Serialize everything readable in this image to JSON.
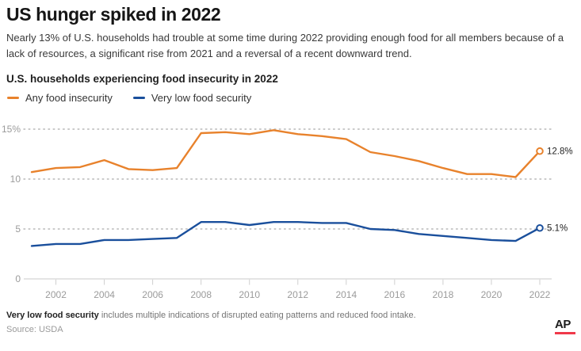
{
  "header": {
    "title": "US hunger spiked in 2022",
    "subtitle": "Nearly 13% of U.S. households had trouble at some time during 2022 providing enough food for all members because of a lack of resources, a significant rise from 2021 and a reversal of a recent downward trend."
  },
  "chart": {
    "title": "U.S. households experiencing food insecurity in 2022"
  },
  "chart_data": {
    "type": "line",
    "title": "U.S. households experiencing food insecurity in 2022",
    "x": [
      2001,
      2002,
      2003,
      2004,
      2005,
      2006,
      2007,
      2008,
      2009,
      2010,
      2011,
      2012,
      2013,
      2014,
      2015,
      2016,
      2017,
      2018,
      2019,
      2020,
      2021,
      2022
    ],
    "series": [
      {
        "name": "Any food insecurity",
        "color": "#e8822c",
        "values": [
          10.7,
          11.1,
          11.2,
          11.9,
          11.0,
          10.9,
          11.1,
          14.6,
          14.7,
          14.5,
          14.9,
          14.5,
          14.3,
          14.0,
          12.7,
          12.3,
          11.8,
          11.1,
          10.5,
          10.5,
          10.2,
          12.8
        ],
        "end_label": "12.8%"
      },
      {
        "name": "Very low food security",
        "color": "#1a4f9c",
        "values": [
          3.3,
          3.5,
          3.5,
          3.9,
          3.9,
          4.0,
          4.1,
          5.7,
          5.7,
          5.4,
          5.7,
          5.7,
          5.6,
          5.6,
          5.0,
          4.9,
          4.5,
          4.3,
          4.1,
          3.9,
          3.8,
          5.1
        ],
        "end_label": "5.1%"
      }
    ],
    "xticks": [
      2002,
      2004,
      2006,
      2008,
      2010,
      2012,
      2014,
      2016,
      2018,
      2020,
      2022
    ],
    "yticks": [
      {
        "value": 0,
        "label": "0"
      },
      {
        "value": 5,
        "label": "5"
      },
      {
        "value": 10,
        "label": "10"
      },
      {
        "value": 15,
        "label": "15%"
      }
    ],
    "ylim": [
      0,
      15
    ],
    "grid": "dotted-horizontal",
    "legend_position": "top-left"
  },
  "footer": {
    "note_bold": "Very low food security",
    "note_rest": " includes multiple indications of disrupted eating patterns and reduced food intake.",
    "source": "Source: USDA",
    "logo": "AP"
  }
}
